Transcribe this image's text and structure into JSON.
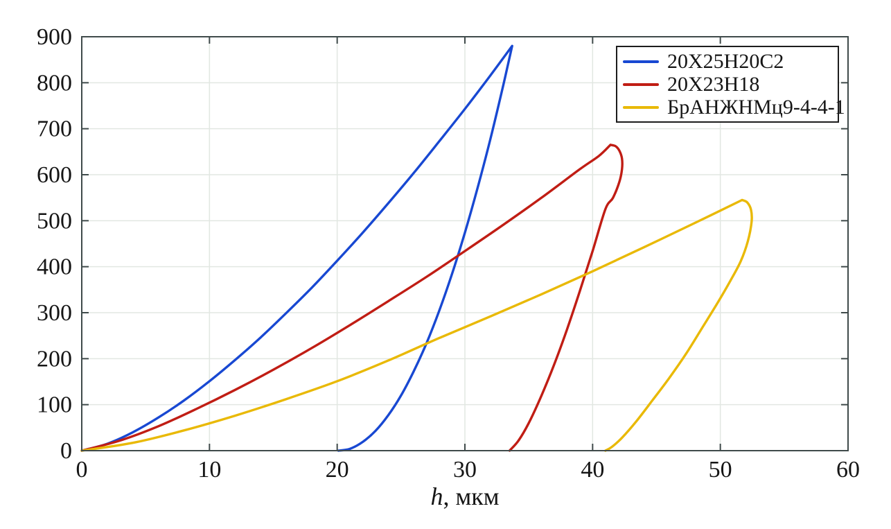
{
  "figure": {
    "background": "#ffffff",
    "frame_color": "#3f4a4a",
    "grid_color": "#e2e7e2",
    "text_color": "#151515",
    "legend_border_color": "#1c1c1c"
  },
  "chart_data": {
    "type": "line",
    "title": "",
    "xlabel": "h, мкм",
    "ylabel": "",
    "xlim": [
      0,
      60
    ],
    "ylim": [
      0,
      900
    ],
    "xticks": [
      0,
      10,
      20,
      30,
      40,
      50,
      60
    ],
    "yticks": [
      0,
      100,
      200,
      300,
      400,
      500,
      600,
      700,
      800,
      900
    ],
    "grid": true,
    "legend_position": "top-right",
    "series": [
      {
        "name": "20Х25Н20С2",
        "color": "#1848d2",
        "curve_kind": "indentation load-unload",
        "peak_h_um": 33.7,
        "peak_load": 880,
        "residual_h_um": 20.1,
        "loading": [
          [
            0,
            0
          ],
          [
            2,
            15
          ],
          [
            4,
            40
          ],
          [
            6,
            72
          ],
          [
            8,
            109
          ],
          [
            10,
            151
          ],
          [
            12,
            197
          ],
          [
            14,
            246
          ],
          [
            16,
            299
          ],
          [
            18,
            354
          ],
          [
            20,
            413
          ],
          [
            22,
            474
          ],
          [
            24,
            538
          ],
          [
            26,
            604
          ],
          [
            28,
            673
          ],
          [
            30,
            743
          ],
          [
            32,
            816
          ],
          [
            33.7,
            880
          ]
        ],
        "unloading": [
          [
            33.7,
            880
          ],
          [
            33,
            794
          ],
          [
            32,
            678
          ],
          [
            31,
            572
          ],
          [
            30,
            474
          ],
          [
            29,
            385
          ],
          [
            28,
            305
          ],
          [
            27,
            234
          ],
          [
            26,
            173
          ],
          [
            25,
            120
          ],
          [
            24,
            77
          ],
          [
            23,
            43
          ],
          [
            22,
            19
          ],
          [
            21,
            4
          ],
          [
            20.1,
            0
          ]
        ]
      },
      {
        "name": "20Х23Н18",
        "color": "#c01d14",
        "curve_kind": "indentation load-unload",
        "peak_h_um": 42.3,
        "peak_load": 672,
        "residual_h_um": 33.5,
        "loading": [
          [
            0,
            0
          ],
          [
            3,
            22
          ],
          [
            6,
            53
          ],
          [
            9,
            91
          ],
          [
            12,
            132
          ],
          [
            15,
            176
          ],
          [
            18,
            223
          ],
          [
            21,
            273
          ],
          [
            24,
            325
          ],
          [
            27,
            378
          ],
          [
            30,
            434
          ],
          [
            33,
            491
          ],
          [
            36,
            550
          ],
          [
            39,
            612
          ],
          [
            40.5,
            641
          ],
          [
            41.4,
            665
          ]
        ],
        "unloading": [
          [
            41.4,
            665
          ],
          [
            41.8,
            662
          ],
          [
            42.1,
            652
          ],
          [
            42.3,
            635
          ],
          [
            42.3,
            612
          ],
          [
            42.1,
            585
          ],
          [
            41.6,
            550
          ],
          [
            41.0,
            525
          ],
          [
            40.0,
            434
          ],
          [
            39.0,
            347
          ],
          [
            38.0,
            264
          ],
          [
            37.0,
            188
          ],
          [
            36.0,
            120
          ],
          [
            35.0,
            60
          ],
          [
            34.2,
            22
          ],
          [
            33.5,
            0
          ]
        ]
      },
      {
        "name": "БрАНЖНМц9-4-4-1",
        "color": "#e9b906",
        "curve_kind": "indentation load-unload",
        "peak_h_um": 51.7,
        "peak_load": 545,
        "residual_h_um": 41.0,
        "loading": [
          [
            0,
            0
          ],
          [
            4,
            17
          ],
          [
            8,
            44
          ],
          [
            12,
            76
          ],
          [
            16,
            112
          ],
          [
            20,
            151
          ],
          [
            24,
            196
          ],
          [
            28,
            245
          ],
          [
            32,
            292
          ],
          [
            36,
            340
          ],
          [
            40,
            390
          ],
          [
            44,
            442
          ],
          [
            48,
            495
          ],
          [
            51.7,
            545
          ]
        ],
        "unloading": [
          [
            51.7,
            545
          ],
          [
            52.1,
            540
          ],
          [
            52.4,
            524
          ],
          [
            52.45,
            498
          ],
          [
            52.15,
            455
          ],
          [
            51.6,
            412
          ],
          [
            50.8,
            370
          ],
          [
            49.8,
            322
          ],
          [
            48.6,
            268
          ],
          [
            47.3,
            210
          ],
          [
            46.0,
            158
          ],
          [
            44.7,
            110
          ],
          [
            43.4,
            63
          ],
          [
            42.3,
            28
          ],
          [
            41.5,
            8
          ],
          [
            41.0,
            0
          ]
        ]
      }
    ]
  }
}
